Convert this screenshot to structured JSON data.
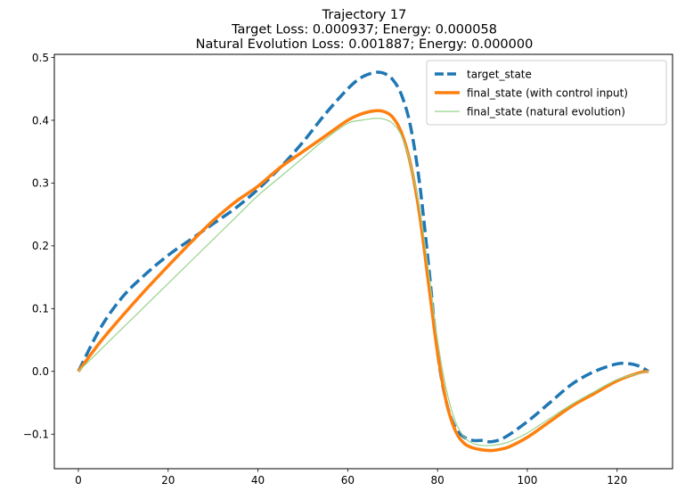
{
  "chart_data": {
    "type": "line",
    "title_lines": [
      "Trajectory 17",
      "Target Loss: 0.000937; Energy: 0.000058",
      "Natural Evolution Loss: 0.001887; Energy: 0.000000"
    ],
    "xlabel": "",
    "ylabel": "",
    "xlim": [
      -5.35,
      132.35
    ],
    "ylim": [
      -0.155,
      0.505
    ],
    "x_ticks": [
      0,
      20,
      40,
      60,
      80,
      100,
      120
    ],
    "x_tick_labels": [
      "0",
      "20",
      "40",
      "60",
      "80",
      "100",
      "120"
    ],
    "y_ticks": [
      -0.1,
      0.0,
      0.1,
      0.2,
      0.3,
      0.4,
      0.5
    ],
    "y_tick_labels": [
      "−0.1",
      "0.0",
      "0.1",
      "0.2",
      "0.3",
      "0.4",
      "0.5"
    ],
    "grid": false,
    "legend_position": "top-right",
    "series": [
      {
        "name": "target_state",
        "color": "#1f77b4",
        "style": "dashed",
        "x": [
          0,
          5,
          10,
          15,
          20,
          25,
          30,
          35,
          40,
          45,
          50,
          55,
          60,
          63,
          66,
          68,
          70,
          72,
          74,
          76,
          78,
          80,
          82,
          84,
          86,
          88,
          90,
          92,
          95,
          100,
          105,
          110,
          115,
          120,
          123,
          125,
          127
        ],
        "y": [
          0.0,
          0.07,
          0.12,
          0.155,
          0.185,
          0.21,
          0.235,
          0.26,
          0.29,
          0.325,
          0.365,
          0.41,
          0.45,
          0.468,
          0.476,
          0.475,
          0.465,
          0.44,
          0.39,
          0.3,
          0.17,
          0.03,
          -0.05,
          -0.09,
          -0.105,
          -0.11,
          -0.11,
          -0.112,
          -0.105,
          -0.08,
          -0.05,
          -0.02,
          0.0,
          0.012,
          0.012,
          0.008,
          0.0
        ]
      },
      {
        "name": "final_state (with control input)",
        "color": "#ff7f0e",
        "style": "solid",
        "x": [
          0,
          5,
          10,
          15,
          20,
          25,
          30,
          35,
          40,
          45,
          50,
          55,
          60,
          63,
          66,
          68,
          70,
          72,
          74,
          76,
          78,
          80,
          82,
          84,
          86,
          88,
          90,
          92,
          94,
          96,
          100,
          105,
          110,
          115,
          120,
          125,
          127
        ],
        "y": [
          0.0,
          0.048,
          0.09,
          0.13,
          0.168,
          0.205,
          0.24,
          0.27,
          0.295,
          0.325,
          0.35,
          0.375,
          0.4,
          0.41,
          0.415,
          0.414,
          0.405,
          0.38,
          0.33,
          0.25,
          0.14,
          0.03,
          -0.05,
          -0.095,
          -0.115,
          -0.122,
          -0.125,
          -0.126,
          -0.124,
          -0.12,
          -0.105,
          -0.08,
          -0.055,
          -0.035,
          -0.015,
          -0.002,
          0.0
        ]
      },
      {
        "name": "final_state (natural evolution)",
        "color": "#98d28b",
        "style": "solid-thin",
        "x": [
          0,
          5,
          10,
          15,
          20,
          25,
          30,
          35,
          40,
          45,
          50,
          55,
          60,
          63,
          66,
          68,
          70,
          72,
          74,
          76,
          78,
          80,
          82,
          84,
          86,
          88,
          90,
          92,
          94,
          96,
          100,
          105,
          110,
          115,
          120,
          125,
          127
        ],
        "y": [
          0.0,
          0.035,
          0.07,
          0.105,
          0.14,
          0.175,
          0.21,
          0.245,
          0.28,
          0.31,
          0.34,
          0.37,
          0.395,
          0.4,
          0.403,
          0.402,
          0.395,
          0.375,
          0.33,
          0.26,
          0.16,
          0.05,
          -0.03,
          -0.08,
          -0.105,
          -0.115,
          -0.118,
          -0.118,
          -0.116,
          -0.112,
          -0.098,
          -0.075,
          -0.052,
          -0.032,
          -0.013,
          -0.003,
          0.0
        ]
      }
    ]
  }
}
